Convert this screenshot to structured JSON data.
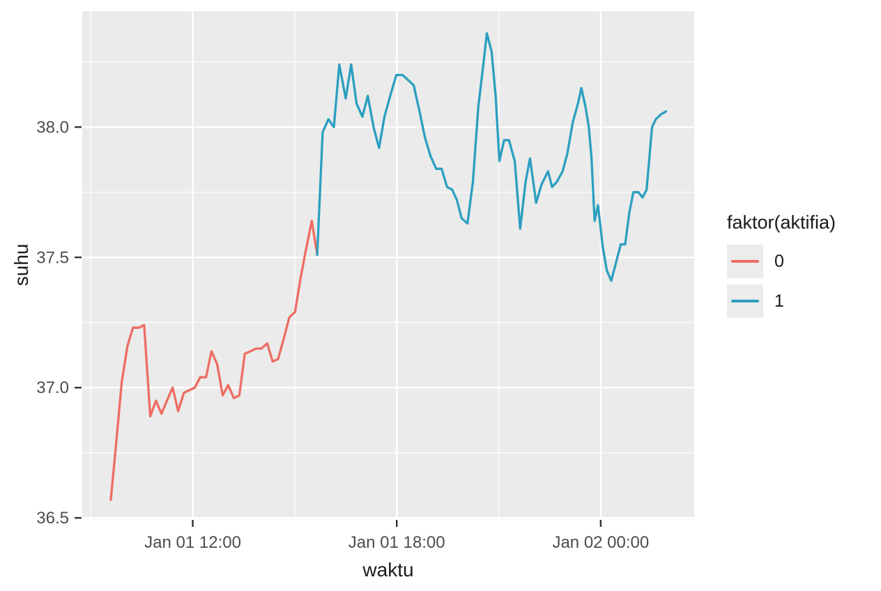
{
  "chart_data": {
    "type": "line",
    "title": "",
    "xlabel": "waktu",
    "ylabel": "suhu",
    "legend_title": "faktor(aktifia)",
    "legend_position": "right",
    "style": {
      "panel_fill": "#EBEBEB",
      "grid_color": "#FFFFFF",
      "legend_key_fill": "#ECECEC",
      "tick_mark_color": "#333333",
      "tick_label_color": "#4D4D4D",
      "axis_title_color": "#1A1A1A"
    },
    "x_axis": {
      "unit": "hours since Jan 01 00:00",
      "range": [
        8.75,
        26.75
      ],
      "major_ticks": [
        {
          "t": 12,
          "label": "Jan 01 12:00"
        },
        {
          "t": 18,
          "label": "Jan 01 18:00"
        },
        {
          "t": 24,
          "label": "Jan 02 00:00"
        }
      ],
      "minor_ticks": [
        9,
        15,
        21
      ]
    },
    "y_axis": {
      "range": [
        36.495,
        38.445
      ],
      "major_ticks": [
        {
          "v": 36.5,
          "label": "36.5"
        },
        {
          "v": 37.0,
          "label": "37.0"
        },
        {
          "v": 37.5,
          "label": "37.5"
        },
        {
          "v": 38.0,
          "label": "38.0"
        }
      ],
      "minor_ticks": [
        36.75,
        37.25,
        37.75,
        38.25
      ]
    },
    "series": [
      {
        "name": "0",
        "color": "#ED6D63",
        "points": [
          [
            9.59,
            36.57
          ],
          [
            9.75,
            36.79
          ],
          [
            9.91,
            37.02
          ],
          [
            10.08,
            37.16
          ],
          [
            10.24,
            37.23
          ],
          [
            10.41,
            37.23
          ],
          [
            10.57,
            37.24
          ],
          [
            10.75,
            36.89
          ],
          [
            10.92,
            36.95
          ],
          [
            11.08,
            36.9
          ],
          [
            11.24,
            36.95
          ],
          [
            11.41,
            37.0
          ],
          [
            11.57,
            36.91
          ],
          [
            11.74,
            36.98
          ],
          [
            11.9,
            36.99
          ],
          [
            12.06,
            37.0
          ],
          [
            12.22,
            37.04
          ],
          [
            12.39,
            37.04
          ],
          [
            12.55,
            37.14
          ],
          [
            12.72,
            37.09
          ],
          [
            12.88,
            36.97
          ],
          [
            13.04,
            37.01
          ],
          [
            13.21,
            36.96
          ],
          [
            13.37,
            36.97
          ],
          [
            13.53,
            37.13
          ],
          [
            13.7,
            37.14
          ],
          [
            13.86,
            37.15
          ],
          [
            14.02,
            37.15
          ],
          [
            14.19,
            37.17
          ],
          [
            14.35,
            37.1
          ],
          [
            14.51,
            37.11
          ],
          [
            14.68,
            37.19
          ],
          [
            14.84,
            37.27
          ],
          [
            15.01,
            37.29
          ],
          [
            15.17,
            37.42
          ],
          [
            15.33,
            37.53
          ],
          [
            15.5,
            37.64
          ],
          [
            15.66,
            37.51
          ]
        ]
      },
      {
        "name": "1",
        "color": "#2B9FC0",
        "points": [
          [
            15.66,
            37.51
          ],
          [
            15.82,
            37.98
          ],
          [
            15.99,
            38.03
          ],
          [
            16.15,
            38.0
          ],
          [
            16.31,
            38.24
          ],
          [
            16.5,
            38.11
          ],
          [
            16.66,
            38.24
          ],
          [
            16.82,
            38.09
          ],
          [
            16.99,
            38.04
          ],
          [
            17.15,
            38.12
          ],
          [
            17.32,
            38.0
          ],
          [
            17.48,
            37.92
          ],
          [
            17.64,
            38.04
          ],
          [
            17.83,
            38.13
          ],
          [
            17.99,
            38.2
          ],
          [
            18.17,
            38.2
          ],
          [
            18.34,
            38.18
          ],
          [
            18.5,
            38.16
          ],
          [
            18.67,
            38.06
          ],
          [
            18.83,
            37.96
          ],
          [
            18.99,
            37.89
          ],
          [
            19.16,
            37.84
          ],
          [
            19.32,
            37.84
          ],
          [
            19.48,
            37.77
          ],
          [
            19.63,
            37.76
          ],
          [
            19.77,
            37.72
          ],
          [
            19.91,
            37.65
          ],
          [
            20.08,
            37.63
          ],
          [
            20.24,
            37.79
          ],
          [
            20.4,
            38.08
          ],
          [
            20.53,
            38.22
          ],
          [
            20.65,
            38.36
          ],
          [
            20.79,
            38.29
          ],
          [
            20.91,
            38.12
          ],
          [
            21.02,
            37.87
          ],
          [
            21.16,
            37.95
          ],
          [
            21.3,
            37.95
          ],
          [
            21.47,
            37.87
          ],
          [
            21.63,
            37.61
          ],
          [
            21.79,
            37.79
          ],
          [
            21.92,
            37.88
          ],
          [
            22.1,
            37.71
          ],
          [
            22.26,
            37.78
          ],
          [
            22.45,
            37.83
          ],
          [
            22.57,
            37.77
          ],
          [
            22.71,
            37.79
          ],
          [
            22.88,
            37.83
          ],
          [
            23.02,
            37.9
          ],
          [
            23.18,
            38.02
          ],
          [
            23.33,
            38.09
          ],
          [
            23.43,
            38.15
          ],
          [
            23.55,
            38.08
          ],
          [
            23.65,
            38.0
          ],
          [
            23.73,
            37.88
          ],
          [
            23.82,
            37.64
          ],
          [
            23.92,
            37.7
          ],
          [
            24.06,
            37.54
          ],
          [
            24.18,
            37.45
          ],
          [
            24.31,
            37.41
          ],
          [
            24.47,
            37.49
          ],
          [
            24.59,
            37.55
          ],
          [
            24.72,
            37.55
          ],
          [
            24.84,
            37.67
          ],
          [
            24.96,
            37.75
          ],
          [
            25.11,
            37.75
          ],
          [
            25.23,
            37.73
          ],
          [
            25.35,
            37.76
          ],
          [
            25.51,
            38.0
          ],
          [
            25.62,
            38.03
          ],
          [
            25.78,
            38.05
          ],
          [
            25.92,
            38.06
          ]
        ]
      }
    ]
  }
}
